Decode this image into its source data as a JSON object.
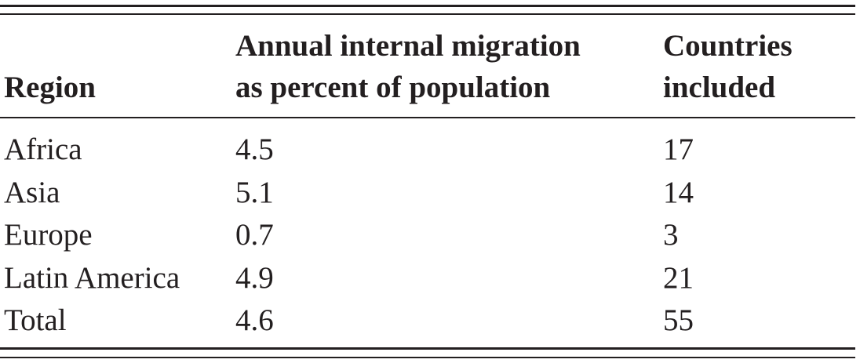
{
  "table": {
    "headers": [
      "Region",
      "Annual internal migration as percent of population",
      "Countries included"
    ],
    "header_lines": [
      [
        "Region"
      ],
      [
        "Annual internal migration",
        "as percent of population"
      ],
      [
        "Countries",
        "included"
      ]
    ],
    "rows": [
      {
        "region": "Africa",
        "migration_pct": "4.5",
        "countries": "17"
      },
      {
        "region": "Asia",
        "migration_pct": "5.1",
        "countries": "14"
      },
      {
        "region": "Europe",
        "migration_pct": "0.7",
        "countries": "3"
      },
      {
        "region": "Latin America",
        "migration_pct": "4.9",
        "countries": "21"
      },
      {
        "region": "Total",
        "migration_pct": "4.6",
        "countries": "55"
      }
    ]
  }
}
